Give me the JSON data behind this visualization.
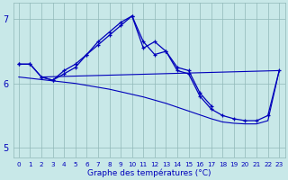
{
  "background_color": "#c8e8e8",
  "grid_color": "#90b8b8",
  "line_color": "#0000bb",
  "x_hours": [
    0,
    1,
    2,
    3,
    4,
    5,
    6,
    7,
    8,
    9,
    10,
    11,
    12,
    13,
    14,
    15,
    16,
    17,
    18,
    19,
    20,
    21,
    22,
    23
  ],
  "temp_curve1": [
    6.3,
    6.3,
    6.1,
    6.05,
    6.15,
    6.25,
    6.45,
    6.6,
    6.75,
    6.9,
    7.05,
    6.65,
    6.45,
    6.5,
    6.25,
    6.2,
    5.85,
    5.65,
    null,
    null,
    null,
    null,
    null,
    null
  ],
  "temp_curve2": [
    6.3,
    6.3,
    6.1,
    6.05,
    6.2,
    6.3,
    6.45,
    6.65,
    6.8,
    6.95,
    7.05,
    6.55,
    6.65,
    6.5,
    6.2,
    6.15,
    5.8,
    5.6,
    5.5,
    5.45,
    5.42,
    5.42,
    5.5,
    6.2
  ],
  "trend_line": [
    6.1,
    6.08,
    6.06,
    6.04,
    6.02,
    6.0,
    5.97,
    5.94,
    5.91,
    5.87,
    5.83,
    5.79,
    5.74,
    5.69,
    5.63,
    5.57,
    5.51,
    5.45,
    5.4,
    5.38,
    5.37,
    5.37,
    5.42,
    6.2
  ],
  "flat_line_x": [
    2,
    23
  ],
  "flat_line_y": [
    6.1,
    6.2
  ],
  "xlabel": "Graphe des températures (°C)",
  "ylim": [
    4.85,
    7.25
  ],
  "yticks": [
    5,
    6,
    7
  ],
  "xlim": [
    -0.5,
    23.5
  ]
}
